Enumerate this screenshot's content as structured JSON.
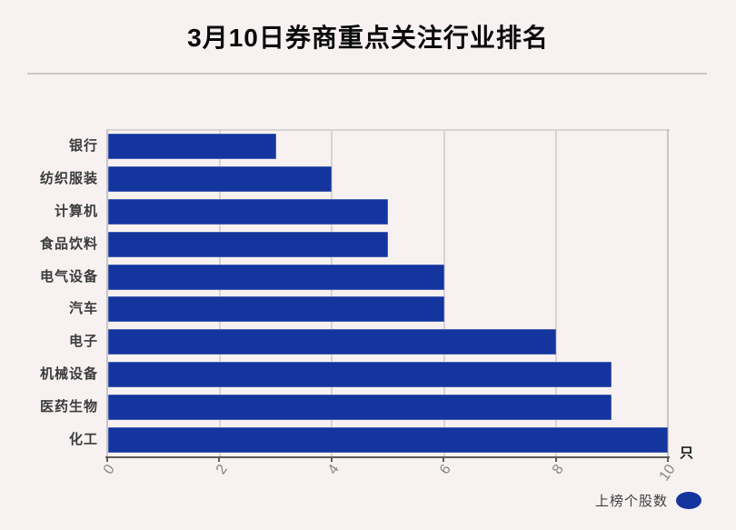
{
  "header": {
    "title": "3月10日券商重点关注行业排名"
  },
  "chart_data": {
    "type": "bar",
    "orientation": "horizontal",
    "title": "3月10日券商重点关注行业排名",
    "categories": [
      "银行",
      "纺织服装",
      "计算机",
      "食品饮料",
      "电气设备",
      "汽车",
      "电子",
      "机械设备",
      "医药生物",
      "化工"
    ],
    "values": [
      3,
      4,
      5,
      5,
      6,
      6,
      8,
      9,
      9,
      10
    ],
    "series_name": "上榜个股数",
    "xlim": [
      0,
      10
    ],
    "xticks": [
      0,
      2,
      4,
      6,
      8,
      10
    ],
    "unit": "只",
    "grid": true,
    "legend_position": "bottom-right",
    "bar_color": "#14349e"
  },
  "legend": {
    "label": "上榜个股数",
    "marker_color": "#14349e"
  },
  "colors": {
    "background": "#f7f2f1",
    "title_text": "#0a0a0a",
    "category_text": "#3b3b3b",
    "tick_text": "#868686",
    "gridline": "#d8d4d3",
    "axis_dark": "#5e5c5c"
  }
}
